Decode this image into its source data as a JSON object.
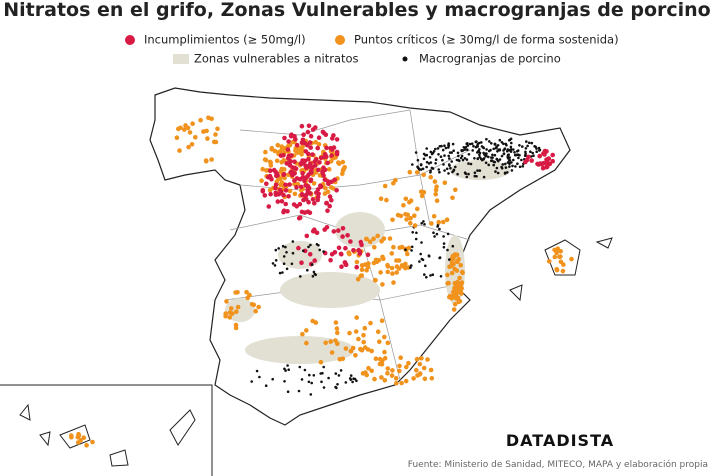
{
  "header": {
    "title": "Nitratos en el grifo, Zonas Vulnerables y macrogranjas de porcino"
  },
  "legend": {
    "items": [
      {
        "label": "Incumplimientos (≥ 50mg/l)",
        "color": "#d81b45",
        "shape": "circle"
      },
      {
        "label": "Puntos críticos (≥ 30mg/l de forma sostenida)",
        "color": "#f0921c",
        "shape": "circle"
      },
      {
        "label": "Zonas vulnerables a nitratos",
        "color": "#e2dfd3",
        "shape": "rect"
      },
      {
        "label": "Macrogranjas de porcino",
        "color": "#111111",
        "shape": "dot"
      }
    ]
  },
  "footer": {
    "brand": "DATADISTA",
    "source": "Fuente: Ministerio de Sanidad, MITECO, MAPA y elaboración propia"
  }
}
